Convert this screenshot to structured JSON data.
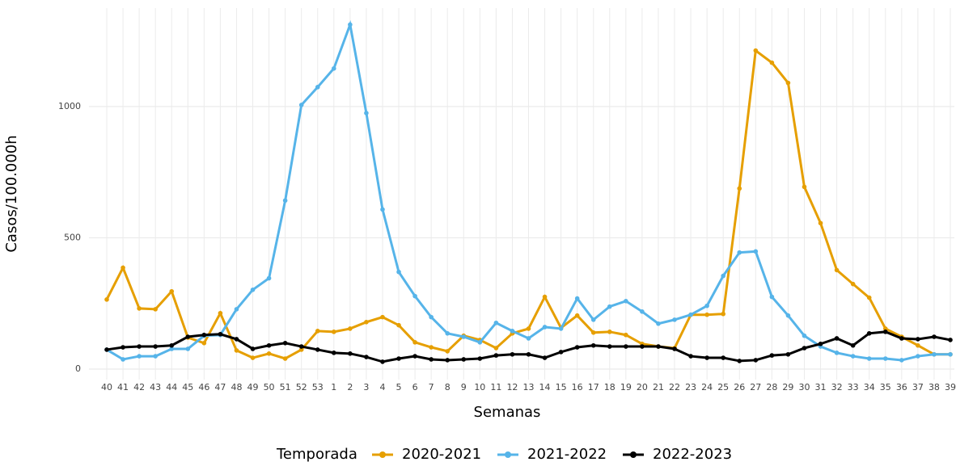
{
  "chart_data": {
    "type": "line",
    "x_label": "Semanas",
    "y_label": "Casos/100.000h",
    "legend_title": "Temporada",
    "categories": [
      "40",
      "41",
      "42",
      "43",
      "44",
      "45",
      "46",
      "47",
      "48",
      "49",
      "50",
      "51",
      "52",
      "53",
      "1",
      "2",
      "3",
      "4",
      "5",
      "6",
      "7",
      "8",
      "9",
      "10",
      "11",
      "12",
      "13",
      "14",
      "15",
      "16",
      "17",
      "18",
      "19",
      "20",
      "21",
      "22",
      "23",
      "24",
      "25",
      "26",
      "27",
      "28",
      "29",
      "30",
      "31",
      "32",
      "33",
      "34",
      "35",
      "36",
      "37",
      "38",
      "39"
    ],
    "series": [
      {
        "name": "2020-2021",
        "color": "#E69F00",
        "values": [
          265,
          386,
          231,
          228,
          296,
          120,
          99,
          213,
          71,
          43,
          59,
          40,
          74,
          145,
          142,
          154,
          179,
          198,
          167,
          102,
          83,
          68,
          127,
          111,
          80,
          136,
          154,
          275,
          157,
          204,
          139,
          142,
          130,
          96,
          86,
          80,
          207,
          207,
          210,
          688,
          1213,
          1167,
          1090,
          694,
          556,
          377,
          324,
          272,
          154,
          123,
          90,
          56,
          56
        ]
      },
      {
        "name": "2021-2022",
        "color": "#56B4E9",
        "values": [
          74,
          37,
          49,
          49,
          77,
          77,
          127,
          130,
          228,
          302,
          346,
          642,
          1006,
          1074,
          1145,
          1312,
          975,
          608,
          370,
          278,
          198,
          136,
          123,
          102,
          176,
          145,
          117,
          160,
          154,
          269,
          188,
          238,
          259,
          219,
          173,
          188,
          207,
          241,
          355,
          444,
          448,
          275,
          204,
          127,
          86,
          62,
          49,
          40,
          40,
          34,
          49,
          56,
          56
        ]
      },
      {
        "name": "2022-2023",
        "color": "#000000",
        "values": [
          74,
          83,
          86,
          86,
          90,
          123,
          130,
          133,
          114,
          77,
          90,
          99,
          86,
          74,
          62,
          59,
          46,
          28,
          40,
          49,
          37,
          34,
          37,
          40,
          52,
          56,
          56,
          43,
          65,
          83,
          90,
          86,
          86,
          86,
          86,
          77,
          49,
          43,
          43,
          31,
          34,
          52,
          56,
          80,
          96,
          117,
          90,
          136,
          142,
          117,
          114,
          123,
          111
        ]
      }
    ],
    "ylim": [
      -40,
      1375
    ],
    "yticks": [
      0,
      500,
      1000
    ],
    "grid": true,
    "legend": "bottom"
  }
}
